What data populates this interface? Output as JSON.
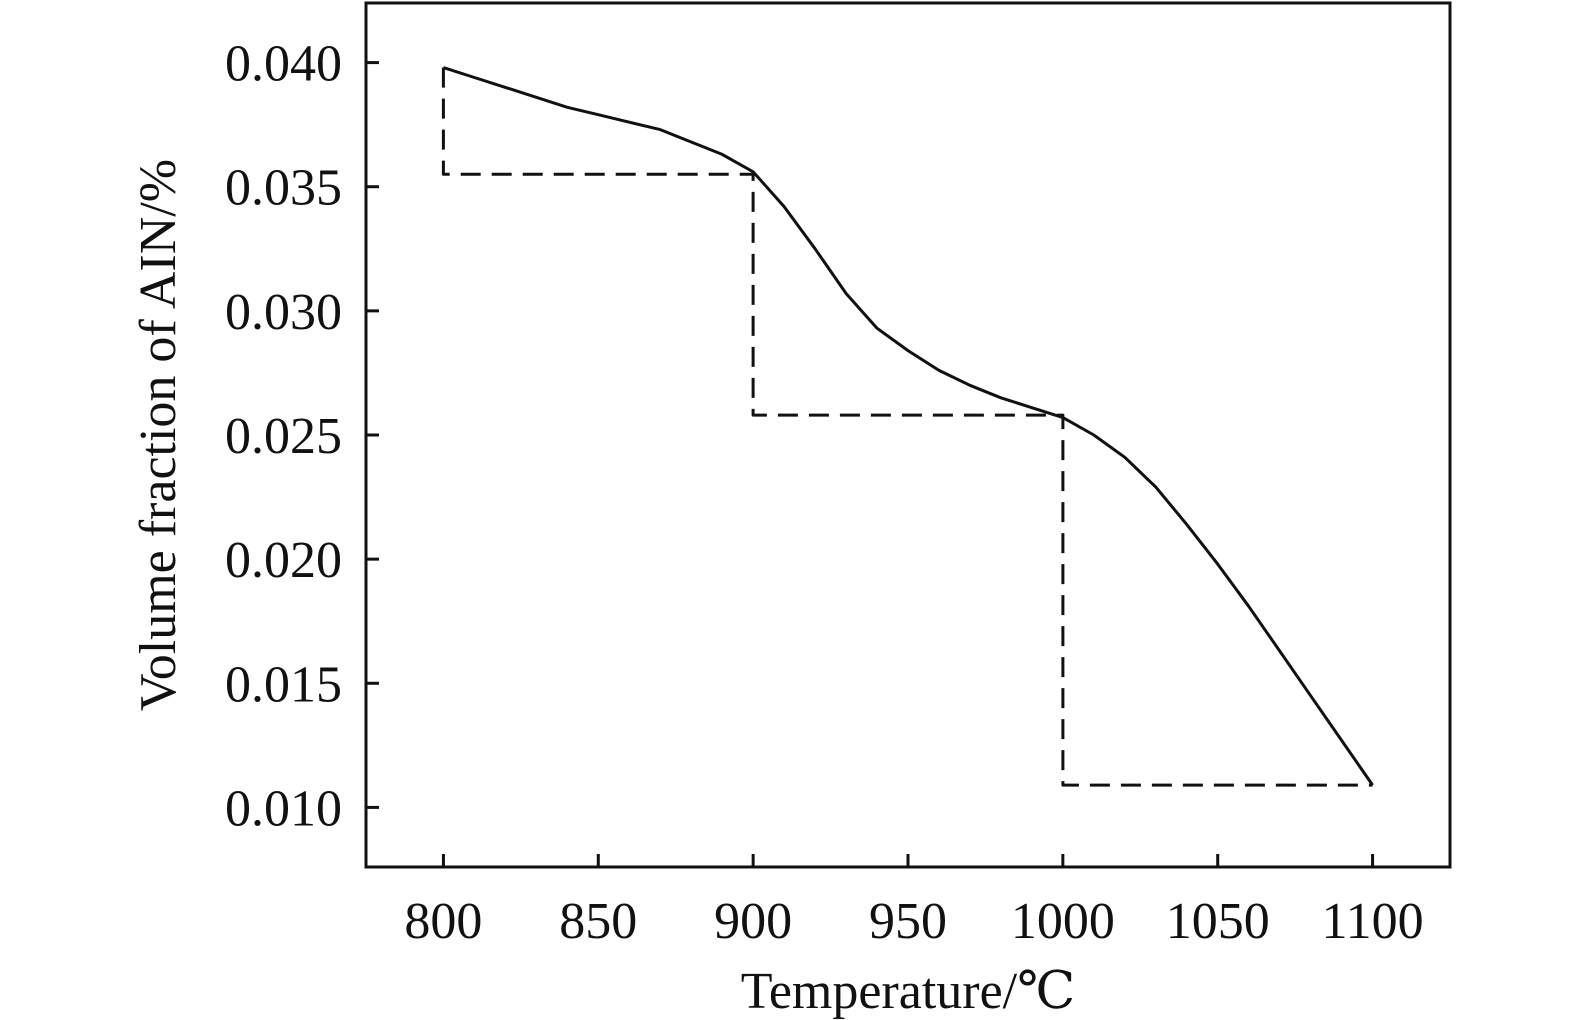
{
  "chart_data": {
    "type": "line",
    "title": "",
    "xlabel": "Temperature/℃",
    "ylabel": "Volume fraction of AIN/%",
    "xlim": [
      775,
      1125
    ],
    "ylim": [
      0.0076,
      0.0424
    ],
    "x_ticks": [
      800,
      850,
      900,
      950,
      1000,
      1050,
      1100
    ],
    "x_tick_labels": [
      "800",
      "850",
      "900",
      "950",
      "1000",
      "1050",
      "1100"
    ],
    "y_ticks": [
      0.01,
      0.015,
      0.02,
      0.025,
      0.03,
      0.035,
      0.04
    ],
    "y_tick_labels": [
      "0.010",
      "0.015",
      "0.020",
      "0.025",
      "0.030",
      "0.035",
      "0.040"
    ],
    "grid": false,
    "legend": "none",
    "line_color": "#111111",
    "series": [
      {
        "style": "solid",
        "x": [
          800,
          810,
          820,
          830,
          840,
          850,
          860,
          870,
          880,
          890,
          900,
          910,
          920,
          930,
          940,
          950,
          960,
          970,
          980,
          990,
          1000,
          1010,
          1020,
          1030,
          1040,
          1050,
          1060,
          1070,
          1080,
          1090,
          1100
        ],
        "y": [
          0.0398,
          0.0394,
          0.039,
          0.0386,
          0.0382,
          0.0379,
          0.0376,
          0.0373,
          0.0368,
          0.0363,
          0.0356,
          0.0342,
          0.0325,
          0.0307,
          0.0293,
          0.0284,
          0.0276,
          0.027,
          0.0265,
          0.0261,
          0.0257,
          0.025,
          0.0241,
          0.0229,
          0.0214,
          0.0198,
          0.0181,
          0.0163,
          0.0145,
          0.0127,
          0.0109
        ]
      },
      {
        "style": "dashed",
        "x": [
          800,
          800,
          900,
          900,
          1000,
          1000,
          1100
        ],
        "y": [
          0.0398,
          0.0355,
          0.0355,
          0.0258,
          0.0258,
          0.0109,
          0.0109
        ]
      }
    ]
  }
}
